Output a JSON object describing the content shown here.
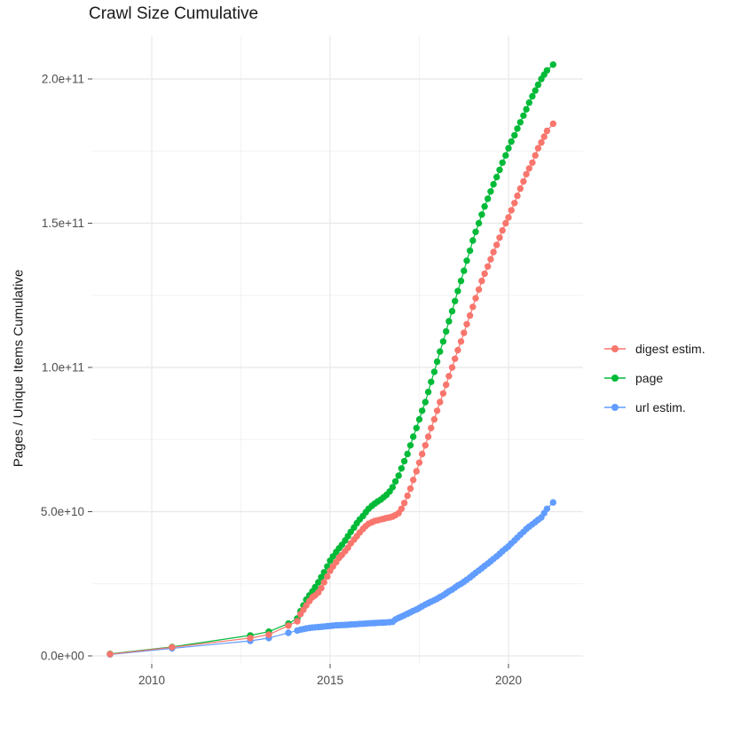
{
  "chart_data": {
    "type": "scatter",
    "title": "Crawl Size Cumulative",
    "xlabel": "",
    "ylabel": "Pages / Unique Items Cumulative",
    "value_unit": "1e9 (values below are billions of pages / unique items)",
    "xlim": [
      2008.3,
      2022.1
    ],
    "ylim": [
      -10,
      215
    ],
    "grid": true,
    "legend_position": "right",
    "x_ticks": [
      {
        "label": "2010",
        "value": 2010
      },
      {
        "label": "2015",
        "value": 2015
      },
      {
        "label": "2020",
        "value": 2020
      }
    ],
    "x_minor_ticks": [
      2012.5,
      2017.5
    ],
    "y_ticks": [
      {
        "label": "0.0e+00",
        "value": 0
      },
      {
        "label": "5.0e+10",
        "value": 50
      },
      {
        "label": "1.0e+11",
        "value": 100
      },
      {
        "label": "1.5e+11",
        "value": 150
      },
      {
        "label": "2.0e+11",
        "value": 200
      }
    ],
    "y_minor_ticks": [
      25,
      75,
      125,
      175
    ],
    "x": [
      2008.83,
      2010.57,
      2012.76,
      2013.28,
      2013.83,
      2014.08,
      2014.17,
      2014.25,
      2014.33,
      2014.42,
      2014.5,
      2014.58,
      2014.67,
      2014.75,
      2014.83,
      2014.92,
      2015.0,
      2015.08,
      2015.17,
      2015.25,
      2015.33,
      2015.42,
      2015.5,
      2015.58,
      2015.67,
      2015.75,
      2015.83,
      2015.92,
      2016.0,
      2016.08,
      2016.17,
      2016.25,
      2016.33,
      2016.42,
      2016.5,
      2016.58,
      2016.67,
      2016.75,
      2016.83,
      2016.92,
      2017.0,
      2017.08,
      2017.17,
      2017.25,
      2017.33,
      2017.42,
      2017.5,
      2017.58,
      2017.67,
      2017.75,
      2017.83,
      2017.92,
      2018.0,
      2018.08,
      2018.17,
      2018.25,
      2018.33,
      2018.42,
      2018.5,
      2018.58,
      2018.67,
      2018.75,
      2018.83,
      2018.92,
      2019.0,
      2019.08,
      2019.17,
      2019.25,
      2019.33,
      2019.42,
      2019.5,
      2019.58,
      2019.67,
      2019.75,
      2019.83,
      2019.92,
      2020.0,
      2020.08,
      2020.17,
      2020.25,
      2020.33,
      2020.42,
      2020.5,
      2020.58,
      2020.67,
      2020.75,
      2020.83,
      2020.92,
      2021.0,
      2021.08,
      2021.25
    ],
    "series": [
      {
        "name": "digest estim.",
        "color": "#F8766D",
        "values": [
          0.6,
          3.0,
          6.2,
          7.4,
          10.5,
          12.0,
          14.5,
          16.0,
          17.5,
          19.0,
          20.3,
          21.0,
          22.0,
          23.5,
          25.5,
          27.5,
          29.5,
          31.0,
          32.5,
          34.0,
          35.0,
          36.3,
          37.5,
          39.0,
          40.3,
          41.5,
          42.8,
          44.0,
          45.0,
          45.8,
          46.3,
          46.8,
          47.0,
          47.3,
          47.5,
          47.8,
          48.0,
          48.3,
          48.8,
          49.5,
          51.0,
          53.0,
          55.5,
          58.0,
          61.0,
          64.0,
          67.0,
          70.0,
          73.0,
          76.0,
          79.0,
          82.0,
          85.0,
          88.0,
          91.0,
          94.0,
          97.0,
          100.0,
          103.0,
          106.0,
          109.0,
          112.0,
          115.0,
          118.0,
          121.0,
          124.0,
          127.0,
          130.0,
          132.5,
          135.0,
          137.5,
          140.0,
          142.5,
          145.0,
          147.5,
          150.0,
          152.0,
          154.5,
          157.0,
          159.5,
          162.0,
          164.5,
          167.0,
          169.0,
          171.0,
          173.5,
          176.0,
          178.0,
          180.0,
          182.0,
          184.5
        ]
      },
      {
        "name": "page",
        "color": "#00BA38",
        "values": [
          0.7,
          3.1,
          7.1,
          8.4,
          11.2,
          13.0,
          15.5,
          17.5,
          19.5,
          21.0,
          22.3,
          23.8,
          25.5,
          27.3,
          29.0,
          31.0,
          33.0,
          34.5,
          36.0,
          37.3,
          38.5,
          40.0,
          41.5,
          43.0,
          44.5,
          46.0,
          47.3,
          48.5,
          49.8,
          51.0,
          52.0,
          52.8,
          53.5,
          54.2,
          55.0,
          55.8,
          57.0,
          58.5,
          60.5,
          62.5,
          65.0,
          67.5,
          70.0,
          73.0,
          76.0,
          79.0,
          82.0,
          85.0,
          88.0,
          91.5,
          95.0,
          98.5,
          102.0,
          105.5,
          109.0,
          112.5,
          116.0,
          119.5,
          123.0,
          126.5,
          130.0,
          133.5,
          137.0,
          140.5,
          144.0,
          147.0,
          150.0,
          153.0,
          155.8,
          158.5,
          161.0,
          163.5,
          166.0,
          168.5,
          171.0,
          173.5,
          176.0,
          178.3,
          180.5,
          182.8,
          185.0,
          187.3,
          189.5,
          191.8,
          194.0,
          196.0,
          198.0,
          200.0,
          201.5,
          203.0,
          205.0
        ]
      },
      {
        "name": "url estim.",
        "color": "#619CFF",
        "values": [
          0.5,
          2.6,
          5.2,
          6.2,
          8.0,
          8.8,
          9.1,
          9.3,
          9.5,
          9.7,
          9.8,
          9.9,
          10.0,
          10.1,
          10.2,
          10.3,
          10.4,
          10.5,
          10.6,
          10.65,
          10.7,
          10.75,
          10.8,
          10.9,
          10.95,
          11.0,
          11.1,
          11.15,
          11.2,
          11.3,
          11.35,
          11.4,
          11.45,
          11.5,
          11.55,
          11.6,
          11.7,
          11.8,
          12.6,
          13.2,
          13.6,
          14.1,
          14.6,
          15.1,
          15.6,
          16.1,
          16.6,
          17.2,
          17.8,
          18.3,
          18.8,
          19.3,
          19.8,
          20.4,
          21.0,
          21.7,
          22.4,
          23.0,
          23.7,
          24.4,
          25.0,
          25.7,
          26.4,
          27.2,
          28.0,
          28.8,
          29.6,
          30.4,
          31.2,
          32.0,
          32.8,
          33.6,
          34.5,
          35.4,
          36.3,
          37.2,
          38.0,
          39.0,
          40.0,
          41.0,
          42.0,
          43.0,
          44.0,
          44.8,
          45.6,
          46.4,
          47.2,
          48.0,
          49.5,
          51.0,
          53.2
        ]
      }
    ],
    "draw_order": [
      2,
      1,
      0
    ]
  }
}
